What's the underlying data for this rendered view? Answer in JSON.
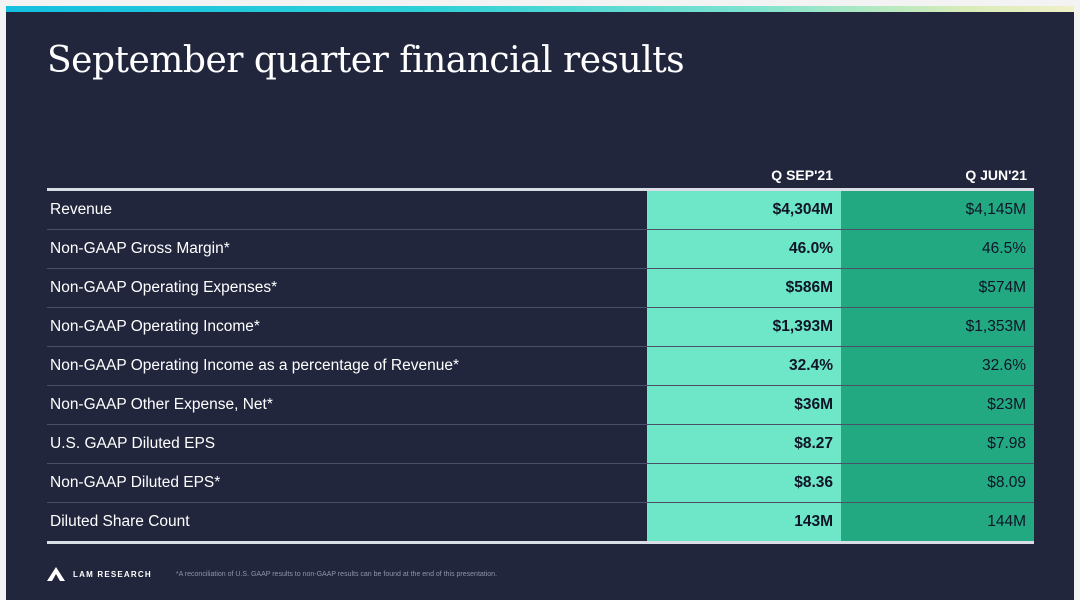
{
  "slide": {
    "title": "September quarter financial results"
  },
  "table": {
    "columns": [
      "Q SEP'21",
      "Q JUN'21"
    ],
    "rows": [
      {
        "label": "Revenue",
        "sep21": "$4,304M",
        "jun21": "$4,145M"
      },
      {
        "label": "Non-GAAP Gross Margin*",
        "sep21": "46.0%",
        "jun21": "46.5%"
      },
      {
        "label": "Non-GAAP Operating Expenses*",
        "sep21": "$586M",
        "jun21": "$574M"
      },
      {
        "label": "Non-GAAP Operating Income*",
        "sep21": "$1,393M",
        "jun21": "$1,353M"
      },
      {
        "label": "Non-GAAP Operating Income as a percentage of Revenue*",
        "sep21": "32.4%",
        "jun21": "32.6%"
      },
      {
        "label": "Non-GAAP Other Expense, Net*",
        "sep21": "$36M",
        "jun21": "$23M"
      },
      {
        "label": "U.S. GAAP Diluted EPS",
        "sep21": "$8.27",
        "jun21": "$7.98"
      },
      {
        "label": "Non-GAAP Diluted EPS*",
        "sep21": "$8.36",
        "jun21": "$8.09"
      },
      {
        "label": "Diluted Share Count",
        "sep21": "143M",
        "jun21": "144M"
      }
    ]
  },
  "footer": {
    "logo_text": "LAM RESEARCH",
    "logo_icon": "lam-logo-icon",
    "footnote": "*A reconciliation of U.S. GAAP results to non-GAAP results can be found at the end of this presentation."
  },
  "colors": {
    "background": "#22263d",
    "current_quarter_column": "#6ee6c8",
    "prior_quarter_column": "#23a982",
    "accent_bar_start": "#15bfe0",
    "accent_bar_end": "#f0f0c8"
  }
}
